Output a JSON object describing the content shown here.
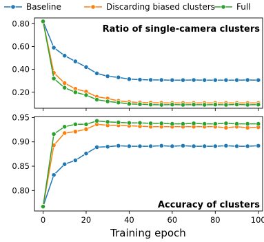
{
  "legend": {
    "items": [
      {
        "label": "Baseline",
        "color": "#1f77b4"
      },
      {
        "label": "Discarding biased clusters",
        "color": "#ff7f0e"
      },
      {
        "label": "Full",
        "color": "#2ca02c"
      }
    ]
  },
  "chart_data": [
    {
      "type": "line",
      "title": "Ratio of single-camera clusters",
      "xlabel": "",
      "ylabel": "",
      "xlim": [
        -4,
        102
      ],
      "ylim": [
        0.06,
        0.85
      ],
      "yticks": [
        0.2,
        0.4,
        0.6,
        0.8
      ],
      "ytick_labels": [
        "0.20",
        "0.40",
        "0.60",
        "0.80"
      ],
      "xticks": [
        0,
        20,
        40,
        60,
        80,
        100
      ],
      "grid": false,
      "x": [
        0,
        5,
        10,
        15,
        20,
        25,
        30,
        35,
        40,
        45,
        50,
        55,
        60,
        65,
        70,
        75,
        80,
        85,
        90,
        95,
        100
      ],
      "series": [
        {
          "name": "Baseline",
          "color": "#1f77b4",
          "values": [
            0.82,
            0.59,
            0.52,
            0.47,
            0.42,
            0.365,
            0.34,
            0.33,
            0.315,
            0.31,
            0.308,
            0.307,
            0.306,
            0.306,
            0.307,
            0.306,
            0.306,
            0.306,
            0.306,
            0.307,
            0.306
          ]
        },
        {
          "name": "Discarding biased clusters",
          "color": "#ff7f0e",
          "values": [
            0.82,
            0.37,
            0.28,
            0.23,
            0.205,
            0.16,
            0.145,
            0.125,
            0.115,
            0.11,
            0.108,
            0.107,
            0.106,
            0.106,
            0.106,
            0.106,
            0.106,
            0.106,
            0.106,
            0.106,
            0.106
          ]
        },
        {
          "name": "Full",
          "color": "#2ca02c",
          "values": [
            0.82,
            0.32,
            0.24,
            0.2,
            0.175,
            0.135,
            0.12,
            0.11,
            0.098,
            0.095,
            0.092,
            0.09,
            0.092,
            0.09,
            0.092,
            0.09,
            0.092,
            0.09,
            0.093,
            0.09,
            0.092
          ]
        }
      ]
    },
    {
      "type": "line",
      "title": "Accuracy of clusters",
      "xlabel": "Training epoch",
      "ylabel": "",
      "xlim": [
        -4,
        102
      ],
      "ylim": [
        0.758,
        0.952
      ],
      "yticks": [
        0.8,
        0.85,
        0.9,
        0.95
      ],
      "ytick_labels": [
        "0.80",
        "0.85",
        "0.90",
        "0.95"
      ],
      "xticks": [
        0,
        20,
        40,
        60,
        80,
        100
      ],
      "xtick_labels": [
        "0",
        "20",
        "40",
        "60",
        "80",
        "100"
      ],
      "grid": false,
      "x": [
        0,
        5,
        10,
        15,
        20,
        25,
        30,
        35,
        40,
        45,
        50,
        55,
        60,
        65,
        70,
        75,
        80,
        85,
        90,
        95,
        100
      ],
      "series": [
        {
          "name": "Baseline",
          "color": "#1f77b4",
          "values": [
            0.767,
            0.832,
            0.854,
            0.862,
            0.876,
            0.889,
            0.89,
            0.892,
            0.891,
            0.891,
            0.891,
            0.892,
            0.891,
            0.892,
            0.891,
            0.891,
            0.891,
            0.892,
            0.891,
            0.891,
            0.892
          ]
        },
        {
          "name": "Discarding biased clusters",
          "color": "#ff7f0e",
          "values": [
            0.767,
            0.893,
            0.918,
            0.921,
            0.926,
            0.936,
            0.934,
            0.934,
            0.933,
            0.932,
            0.931,
            0.931,
            0.931,
            0.931,
            0.931,
            0.931,
            0.931,
            0.929,
            0.931,
            0.929,
            0.93
          ]
        },
        {
          "name": "Full",
          "color": "#2ca02c",
          "values": [
            0.767,
            0.916,
            0.931,
            0.936,
            0.936,
            0.943,
            0.941,
            0.94,
            0.939,
            0.939,
            0.938,
            0.938,
            0.937,
            0.937,
            0.938,
            0.937,
            0.937,
            0.938,
            0.937,
            0.937,
            0.937
          ]
        }
      ]
    }
  ]
}
